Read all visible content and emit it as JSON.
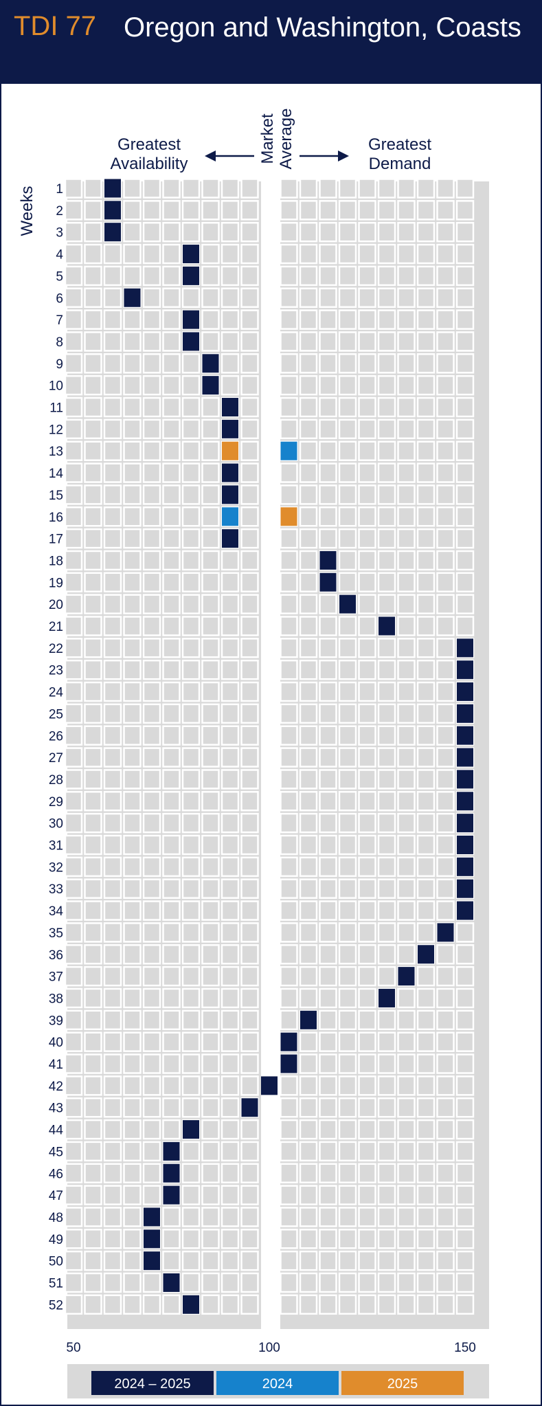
{
  "header": {
    "tdi_label": "TDI 77",
    "title": "Oregon and Washington, Coasts"
  },
  "chart_data": {
    "type": "heatmap",
    "direction_left": [
      "Greatest",
      "Availability"
    ],
    "center_label": [
      "Market",
      "Average"
    ],
    "direction_right": [
      "Greatest",
      "Demand"
    ],
    "y_axis_label": "Weeks",
    "xlim": [
      50,
      150
    ],
    "x_ticks": [
      50,
      100,
      150
    ],
    "x_step": 5,
    "weeks": [
      1,
      2,
      3,
      4,
      5,
      6,
      7,
      8,
      9,
      10,
      11,
      12,
      13,
      14,
      15,
      16,
      17,
      18,
      19,
      20,
      21,
      22,
      23,
      24,
      25,
      26,
      27,
      28,
      29,
      30,
      31,
      32,
      33,
      34,
      35,
      36,
      37,
      38,
      39,
      40,
      41,
      42,
      43,
      44,
      45,
      46,
      47,
      48,
      49,
      50,
      51,
      52
    ],
    "series": [
      {
        "name": "2024 – 2025",
        "color": "#0d1a48",
        "values": [
          60,
          60,
          60,
          80,
          80,
          65,
          80,
          80,
          85,
          85,
          90,
          90,
          null,
          90,
          90,
          null,
          90,
          115,
          115,
          120,
          130,
          150,
          150,
          150,
          150,
          150,
          150,
          150,
          150,
          150,
          150,
          150,
          150,
          150,
          145,
          140,
          135,
          130,
          110,
          105,
          105,
          100,
          95,
          80,
          75,
          75,
          75,
          70,
          70,
          70,
          75,
          80
        ]
      },
      {
        "name": "2024",
        "color": "#1682cc",
        "points": [
          [
            13,
            105
          ],
          [
            16,
            90
          ]
        ]
      },
      {
        "name": "2025",
        "color": "#e08c2c",
        "points": [
          [
            13,
            90
          ],
          [
            16,
            105
          ]
        ]
      }
    ],
    "colors": {
      "cell": "#d9d9d9",
      "panel": "#d9d9d9",
      "navy": "#0d1a48"
    }
  }
}
